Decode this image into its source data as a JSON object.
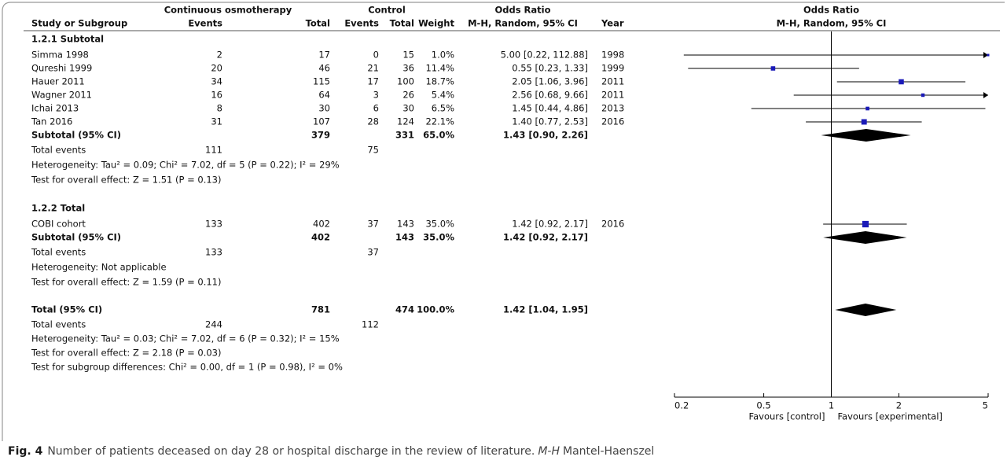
{
  "chart_data": {
    "type": "forest",
    "columns": {
      "study": "Study or Subgroup",
      "exp_group": "Continuous osmotherapy",
      "exp_events": "Events",
      "exp_total": "Total",
      "ctrl_group": "Control",
      "ctrl_events": "Events",
      "ctrl_total": "Total",
      "weight": "Weight",
      "or_group": "Odds Ratio",
      "or_method": "M-H, Random, 95% CI",
      "year": "Year",
      "plot_title": "Odds Ratio",
      "plot_method": "M-H, Random, 95% CI"
    },
    "groups": [
      {
        "title": "1.2.1 Subtotal",
        "studies": [
          {
            "name": "Simma 1998",
            "exp_events": 2,
            "exp_total": 17,
            "ctrl_events": 0,
            "ctrl_total": 15,
            "weight": 1.0,
            "weight_label": "1.0%",
            "or": 5.0,
            "ci": [
              0.22,
              112.88
            ],
            "ci_label": "5.00 [0.22, 112.88]",
            "year": 1998
          },
          {
            "name": "Qureshi 1999",
            "exp_events": 20,
            "exp_total": 46,
            "ctrl_events": 21,
            "ctrl_total": 36,
            "weight": 11.4,
            "weight_label": "11.4%",
            "or": 0.55,
            "ci": [
              0.23,
              1.33
            ],
            "ci_label": "0.55 [0.23, 1.33]",
            "year": 1999
          },
          {
            "name": "Hauer 2011",
            "exp_events": 34,
            "exp_total": 115,
            "ctrl_events": 17,
            "ctrl_total": 100,
            "weight": 18.7,
            "weight_label": "18.7%",
            "or": 2.05,
            "ci": [
              1.06,
              3.96
            ],
            "ci_label": "2.05 [1.06, 3.96]",
            "year": 2011
          },
          {
            "name": "Wagner 2011",
            "exp_events": 16,
            "exp_total": 64,
            "ctrl_events": 3,
            "ctrl_total": 26,
            "weight": 5.4,
            "weight_label": "5.4%",
            "or": 2.56,
            "ci": [
              0.68,
              9.66
            ],
            "ci_label": "2.56 [0.68, 9.66]",
            "year": 2011
          },
          {
            "name": "Ichai 2013",
            "exp_events": 8,
            "exp_total": 30,
            "ctrl_events": 6,
            "ctrl_total": 30,
            "weight": 6.5,
            "weight_label": "6.5%",
            "or": 1.45,
            "ci": [
              0.44,
              4.86
            ],
            "ci_label": "1.45 [0.44, 4.86]",
            "year": 2013
          },
          {
            "name": "Tan 2016",
            "exp_events": 31,
            "exp_total": 107,
            "ctrl_events": 28,
            "ctrl_total": 124,
            "weight": 22.1,
            "weight_label": "22.1%",
            "or": 1.4,
            "ci": [
              0.77,
              2.53
            ],
            "ci_label": "1.40 [0.77, 2.53]",
            "year": 2016
          }
        ],
        "subtotal": {
          "label": "Subtotal (95% CI)",
          "exp_total": 379,
          "ctrl_total": 331,
          "weight": 65.0,
          "weight_label": "65.0%",
          "or": 1.43,
          "ci": [
            0.9,
            2.26
          ],
          "ci_label": "1.43 [0.90, 2.26]"
        },
        "total_events": {
          "label": "Total events",
          "exp": 111,
          "ctrl": 75
        },
        "heterogeneity": "Heterogeneity: Tau² = 0.09; Chi² = 7.02, df = 5 (P = 0.22); I² = 29%",
        "overall_effect": "Test for overall effect: Z = 1.51 (P = 0.13)"
      },
      {
        "title": "1.2.2 Total",
        "studies": [
          {
            "name": "COBI cohort",
            "exp_events": 133,
            "exp_total": 402,
            "ctrl_events": 37,
            "ctrl_total": 143,
            "weight": 35.0,
            "weight_label": "35.0%",
            "or": 1.42,
            "ci": [
              0.92,
              2.17
            ],
            "ci_label": "1.42 [0.92, 2.17]",
            "year": 2016
          }
        ],
        "subtotal": {
          "label": "Subtotal (95% CI)",
          "exp_total": 402,
          "ctrl_total": 143,
          "weight": 35.0,
          "weight_label": "35.0%",
          "or": 1.42,
          "ci": [
            0.92,
            2.17
          ],
          "ci_label": "1.42 [0.92, 2.17]"
        },
        "total_events": {
          "label": "Total events",
          "exp": 133,
          "ctrl": 37
        },
        "heterogeneity": "Heterogeneity: Not applicable",
        "overall_effect": "Test for overall effect: Z = 1.59 (P = 0.11)"
      }
    ],
    "overall": {
      "label": "Total (95% CI)",
      "exp_total": 781,
      "ctrl_total": 474,
      "weight": 100.0,
      "weight_label": "100.0%",
      "or": 1.42,
      "ci": [
        1.04,
        1.95
      ],
      "ci_label": "1.42 [1.04, 1.95]",
      "total_events": {
        "label": "Total events",
        "exp": 244,
        "ctrl": 112
      },
      "heterogeneity": "Heterogeneity: Tau² = 0.03; Chi² = 7.02, df = 6 (P = 0.32); I² = 15%",
      "overall_effect": "Test for overall effect: Z = 2.18 (P = 0.03)",
      "subgroup_test": "Test for subgroup differences: Chi² = 0.00, df = 1 (P = 0.98), I² = 0%"
    },
    "log_scale": true,
    "xlim": [
      0.2,
      5
    ],
    "xticks": [
      0.2,
      0.5,
      1,
      2,
      5
    ],
    "favours_left": "Favours [control]",
    "favours_right": "Favours [experimental]",
    "marker_color": "#1a1ab8",
    "diamond_color": "#000000"
  },
  "caption": {
    "label": "Fig. 4",
    "text": "Number of patients deceased on day 28 or hospital discharge in the review of literature.",
    "abbrev": "M-H",
    "abbrev_text": "Mantel-Haenszel"
  }
}
